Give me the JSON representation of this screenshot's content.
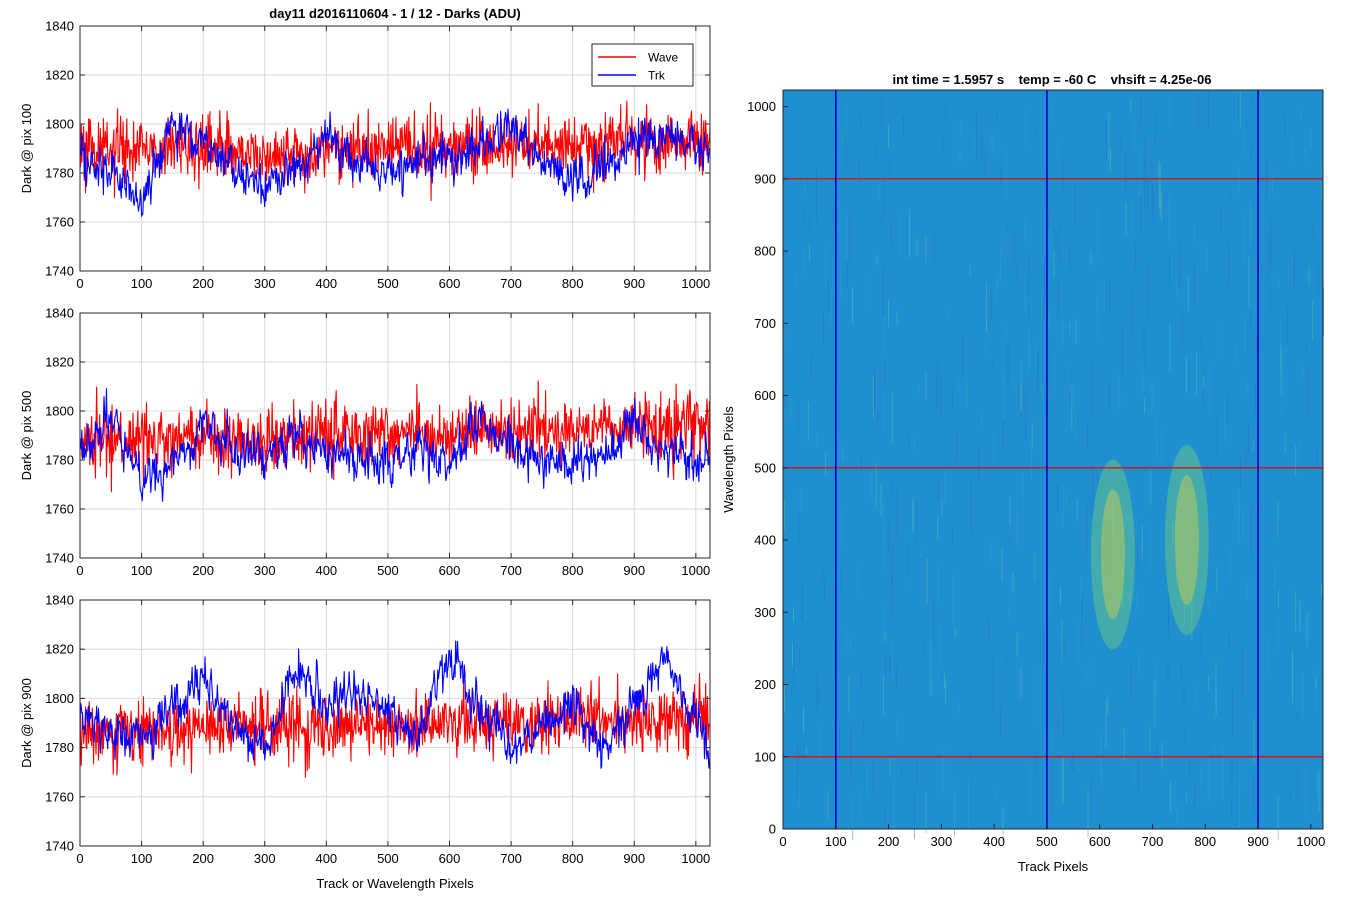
{
  "figure": {
    "left_title": "day11 d2016110604 - 1 / 12 - Darks (ADU)",
    "right_title": "int time = 1.5957 s    temp = -60 C    vhsift = 4.25e-06"
  },
  "colors": {
    "wave": "#ff0000",
    "trk": "#0000ff",
    "grid": "#d9d9d9",
    "axis": "#262626",
    "heat_base": "#1f8fd0"
  },
  "chart_data": [
    {
      "type": "line",
      "ylabel": "Dark @ pix 100",
      "xlabel": "",
      "xlim": [
        0,
        1023
      ],
      "ylim": [
        1740,
        1840
      ],
      "xticks": [
        0,
        100,
        200,
        300,
        400,
        500,
        600,
        700,
        800,
        900,
        1000
      ],
      "yticks": [
        1740,
        1760,
        1780,
        1800,
        1820,
        1840
      ],
      "grid": true,
      "legend": {
        "position": "top-right",
        "entries": [
          "Wave",
          "Trk"
        ]
      },
      "series": [
        {
          "name": "Wave",
          "x": [
            0,
            50,
            100,
            150,
            200,
            250,
            300,
            350,
            400,
            450,
            500,
            550,
            600,
            650,
            700,
            750,
            800,
            850,
            900,
            950,
            1023
          ],
          "values": [
            1788,
            1789,
            1790,
            1791,
            1790,
            1789,
            1787,
            1788,
            1789,
            1789,
            1790,
            1790,
            1791,
            1791,
            1791,
            1792,
            1792,
            1792,
            1793,
            1793,
            1794
          ]
        },
        {
          "name": "Trk",
          "x": [
            0,
            50,
            100,
            150,
            200,
            250,
            300,
            350,
            400,
            450,
            500,
            550,
            600,
            650,
            700,
            750,
            800,
            850,
            900,
            950,
            1023
          ],
          "values": [
            1786,
            1781,
            1768,
            1800,
            1795,
            1780,
            1774,
            1780,
            1795,
            1785,
            1782,
            1786,
            1788,
            1790,
            1800,
            1787,
            1775,
            1783,
            1793,
            1797,
            1786
          ]
        }
      ]
    },
    {
      "type": "line",
      "ylabel": "Dark @ pix 500",
      "xlabel": "",
      "xlim": [
        0,
        1023
      ],
      "ylim": [
        1740,
        1840
      ],
      "xticks": [
        0,
        100,
        200,
        300,
        400,
        500,
        600,
        700,
        800,
        900,
        1000
      ],
      "yticks": [
        1740,
        1760,
        1780,
        1800,
        1820,
        1840
      ],
      "grid": true,
      "series": [
        {
          "name": "Wave",
          "x": [
            0,
            50,
            100,
            150,
            200,
            250,
            300,
            350,
            400,
            450,
            500,
            550,
            600,
            650,
            700,
            750,
            800,
            850,
            900,
            950,
            1023
          ],
          "values": [
            1787,
            1787,
            1788,
            1788,
            1788,
            1788,
            1788,
            1789,
            1789,
            1790,
            1790,
            1791,
            1791,
            1791,
            1792,
            1792,
            1792,
            1793,
            1793,
            1793,
            1794
          ]
        },
        {
          "name": "Trk",
          "x": [
            0,
            50,
            100,
            150,
            200,
            250,
            300,
            350,
            400,
            450,
            500,
            550,
            600,
            650,
            700,
            750,
            800,
            850,
            900,
            950,
            1023
          ],
          "values": [
            1783,
            1798,
            1773,
            1778,
            1795,
            1785,
            1780,
            1790,
            1785,
            1780,
            1778,
            1785,
            1780,
            1798,
            1785,
            1780,
            1778,
            1782,
            1795,
            1783,
            1780
          ]
        }
      ]
    },
    {
      "type": "line",
      "ylabel": "Dark @ pix 900",
      "xlabel": "Track or Wavelength Pixels",
      "xlim": [
        0,
        1023
      ],
      "ylim": [
        1740,
        1840
      ],
      "xticks": [
        0,
        100,
        200,
        300,
        400,
        500,
        600,
        700,
        800,
        900,
        1000
      ],
      "yticks": [
        1740,
        1760,
        1780,
        1800,
        1820,
        1840
      ],
      "grid": true,
      "series": [
        {
          "name": "Wave",
          "x": [
            0,
            50,
            100,
            150,
            200,
            250,
            300,
            350,
            400,
            450,
            500,
            550,
            600,
            650,
            700,
            750,
            800,
            850,
            900,
            950,
            1023
          ],
          "values": [
            1786,
            1786,
            1787,
            1787,
            1787,
            1787,
            1788,
            1788,
            1788,
            1789,
            1789,
            1789,
            1789,
            1790,
            1790,
            1790,
            1791,
            1791,
            1791,
            1792,
            1792
          ]
        },
        {
          "name": "Trk",
          "x": [
            0,
            50,
            100,
            150,
            200,
            250,
            300,
            350,
            400,
            450,
            500,
            550,
            600,
            650,
            700,
            750,
            800,
            850,
            900,
            950,
            1023
          ],
          "values": [
            1793,
            1785,
            1785,
            1797,
            1808,
            1790,
            1780,
            1812,
            1795,
            1805,
            1793,
            1785,
            1818,
            1795,
            1780,
            1790,
            1795,
            1780,
            1797,
            1815,
            1780
          ]
        }
      ]
    },
    {
      "type": "heatmap",
      "xlabel": "Track Pixels",
      "ylabel": "Wavelength Pixels",
      "xlim": [
        0,
        1023
      ],
      "ylim": [
        0,
        1023
      ],
      "xticks": [
        0,
        100,
        200,
        300,
        400,
        500,
        600,
        700,
        800,
        900,
        1000
      ],
      "yticks": [
        0,
        100,
        200,
        300,
        400,
        500,
        600,
        700,
        800,
        900,
        1000
      ],
      "hlines": {
        "values": [
          100,
          500,
          900
        ],
        "color": "#dd1111"
      },
      "vlines": {
        "values": [
          100,
          500,
          900
        ],
        "color": "#0000cc"
      },
      "hotspots": [
        {
          "x": 625,
          "y": 380,
          "value": "high"
        },
        {
          "x": 765,
          "y": 400,
          "value": "high"
        }
      ]
    }
  ]
}
